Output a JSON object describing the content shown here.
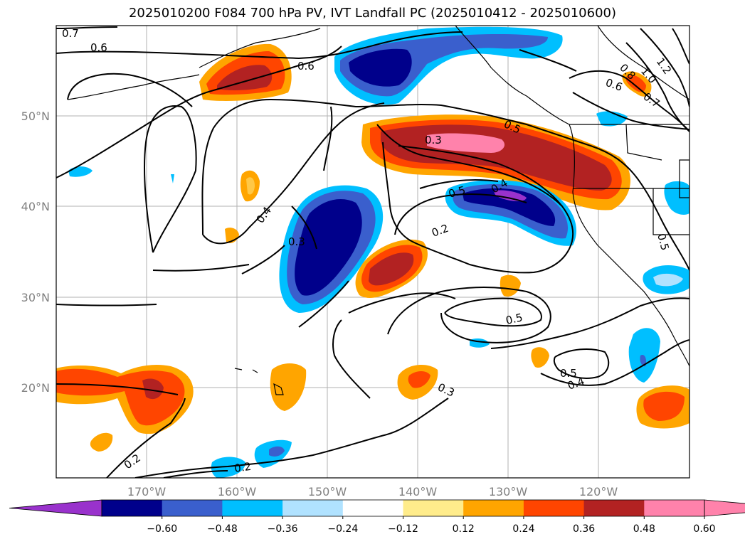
{
  "title": "2025010200 F084 700 hPa PV, IVT Landfall PC (2025010412 - 2025010600)",
  "lat_labels": [
    "50°N",
    "40°N",
    "30°N",
    "20°N"
  ],
  "lon_labels": [
    "170°W",
    "160°W",
    "150°W",
    "140°W",
    "130°W",
    "120°W"
  ],
  "contour_labels": [
    "0.7",
    "0.6",
    "0.6",
    "1.2",
    "1.0",
    "0.8",
    "0.6",
    "0.7",
    "0.5",
    "0.3",
    "0.5",
    "0.4",
    "0.4",
    "0.3",
    "0.2",
    "0.5",
    "0.5",
    "0.4",
    "0.3",
    "0.2",
    "0.2",
    "0.5"
  ],
  "colorbar": {
    "ticks": [
      "−0.60",
      "−0.48",
      "−0.36",
      "−0.24",
      "−0.12",
      "0.12",
      "0.24",
      "0.36",
      "0.48",
      "0.60"
    ],
    "colors": [
      "#9932cc",
      "#00008b",
      "#3a5fcd",
      "#00bfff",
      "#b0e2ff",
      "#ffffff",
      "#ffec8b",
      "#ffa500",
      "#ff4500",
      "#b22222",
      "#ff82ab",
      "#ff82ab"
    ]
  },
  "palette": {
    "neg_extreme": "#9932cc",
    "neg_strong": "#00008b",
    "neg_med": "#3a5fcd",
    "neg_mild": "#00bfff",
    "neg_weak": "#b0e2ff",
    "pos_weak": "#ffec8b",
    "pos_mild": "#ffa500",
    "pos_med": "#ff4500",
    "pos_strong": "#b22222",
    "pos_extreme": "#ff82ab"
  }
}
